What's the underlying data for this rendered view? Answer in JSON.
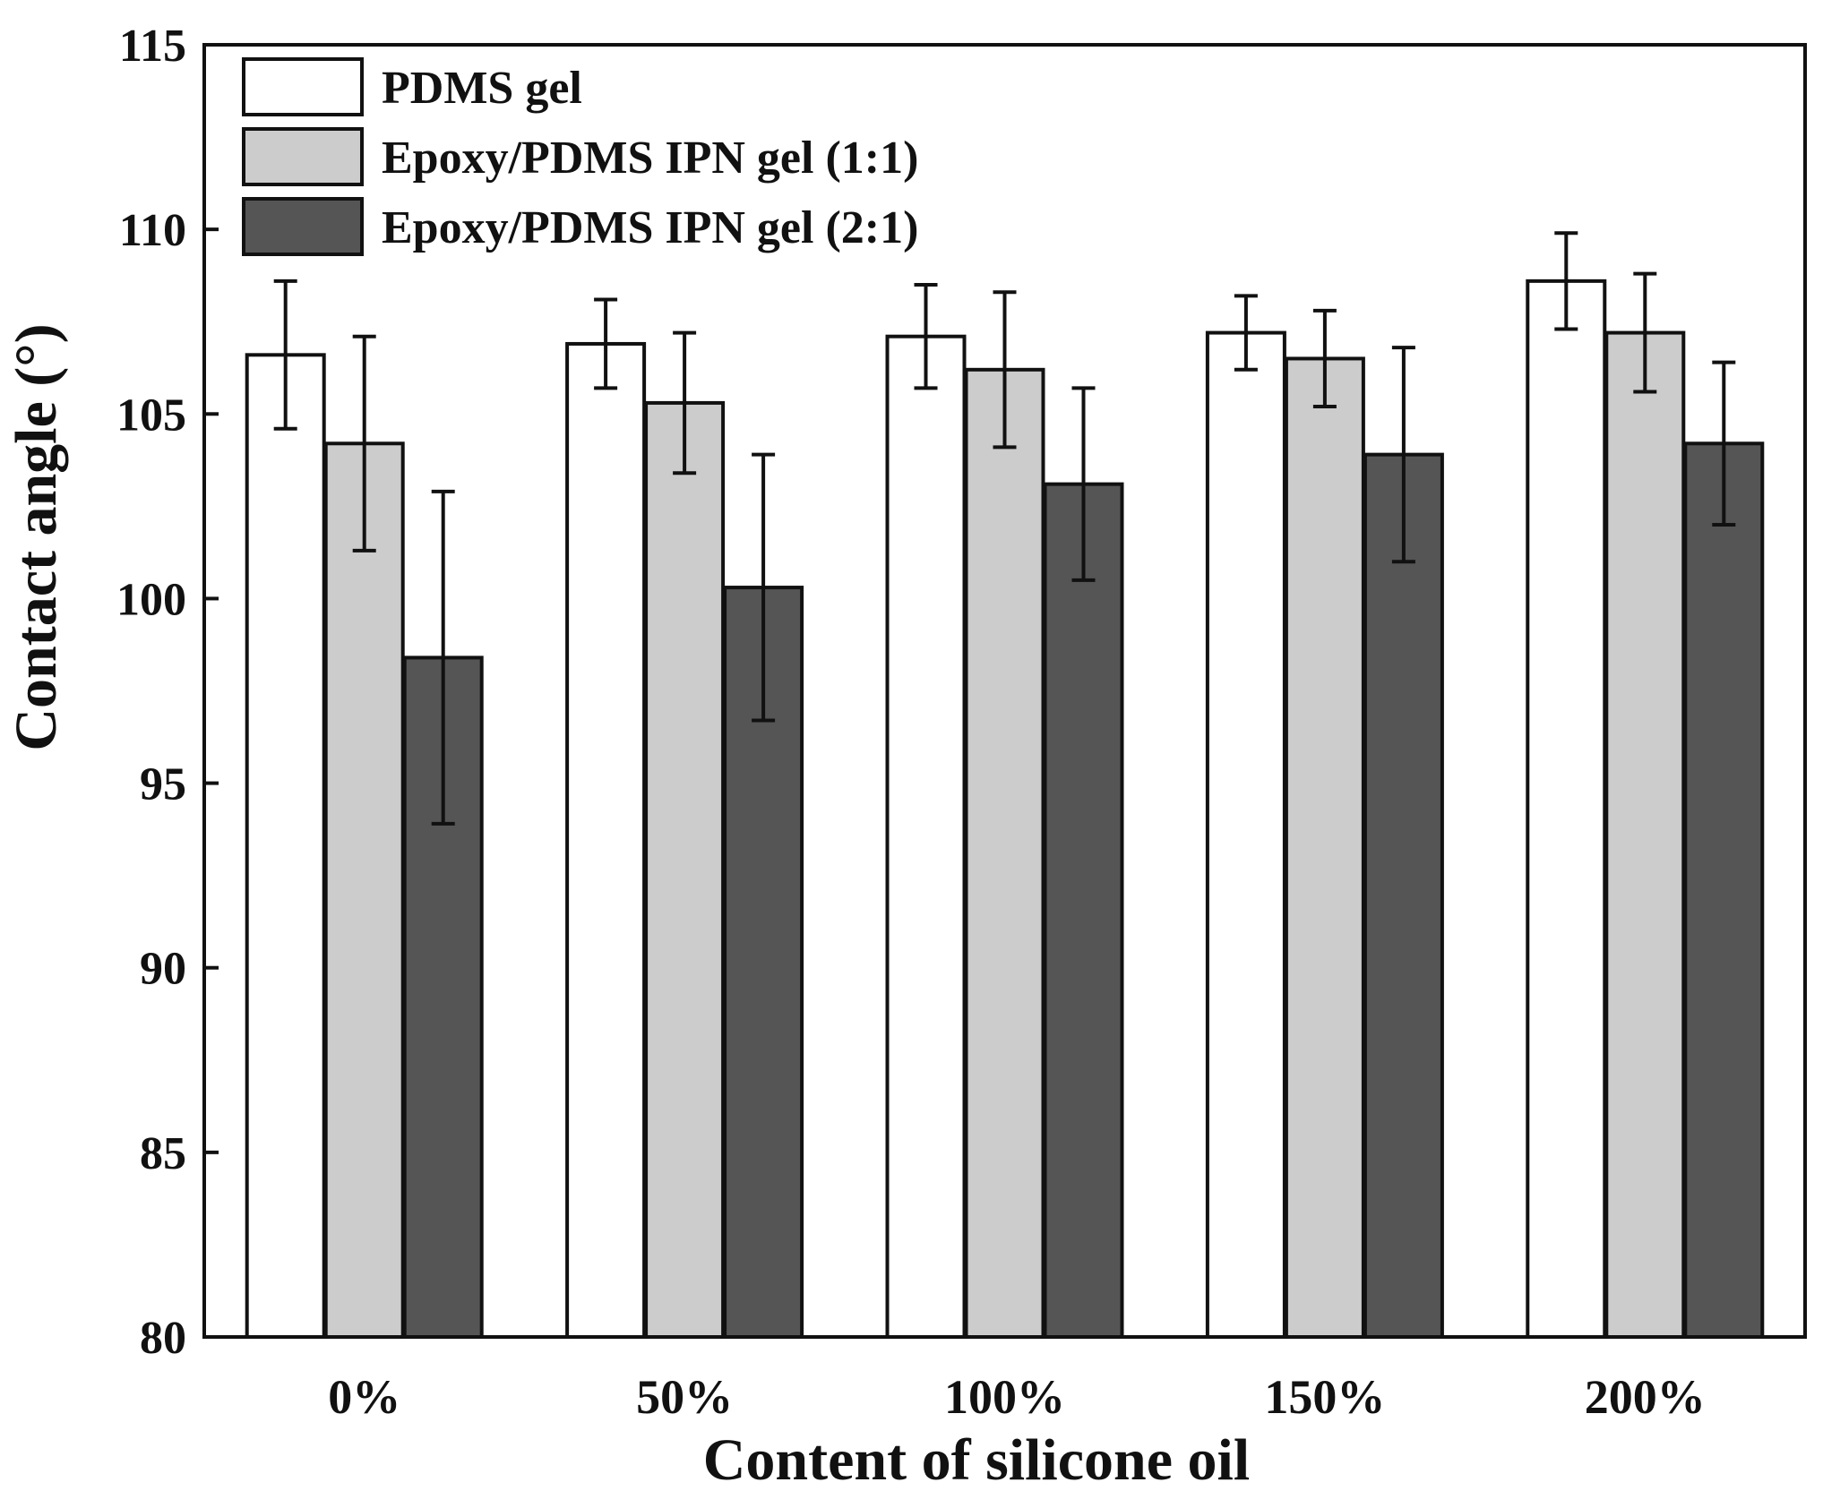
{
  "chart_data": {
    "type": "bar",
    "title": "",
    "xlabel": "Content of silicone oil",
    "ylabel": "Contact angle (°)",
    "ylim": [
      80,
      115
    ],
    "yticks": [
      80,
      85,
      90,
      95,
      100,
      105,
      110,
      115
    ],
    "categories": [
      "0%",
      "50%",
      "100%",
      "150%",
      "200%"
    ],
    "legend_position": "top-left",
    "grid": false,
    "series": [
      {
        "name": "PDMS gel",
        "color": "#ffffff",
        "values": [
          106.6,
          106.9,
          107.1,
          107.2,
          108.6
        ],
        "errors": [
          2.0,
          1.2,
          1.4,
          1.0,
          1.3
        ]
      },
      {
        "name": "Epoxy/PDMS IPN gel (1:1)",
        "color": "#cccccc",
        "values": [
          104.2,
          105.3,
          106.2,
          106.5,
          107.2
        ],
        "errors": [
          2.9,
          1.9,
          2.1,
          1.3,
          1.6
        ]
      },
      {
        "name": "Epoxy/PDMS IPN gel (2:1)",
        "color": "#555555",
        "values": [
          98.4,
          100.3,
          103.1,
          103.9,
          104.2
        ],
        "errors": [
          4.5,
          3.6,
          2.6,
          2.9,
          2.2
        ]
      }
    ]
  }
}
